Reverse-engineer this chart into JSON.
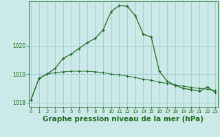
{
  "title": "Graphe pression niveau de la mer (hPa)",
  "background_color": "#cce9e9",
  "grid_color": "#99cccc",
  "line_color": "#1a6b1a",
  "x_labels": [
    "0",
    "1",
    "2",
    "3",
    "4",
    "5",
    "6",
    "7",
    "8",
    "9",
    "10",
    "11",
    "12",
    "13",
    "14",
    "15",
    "16",
    "17",
    "18",
    "19",
    "20",
    "21",
    "22",
    "23"
  ],
  "x_values": [
    0,
    1,
    2,
    3,
    4,
    5,
    6,
    7,
    8,
    9,
    10,
    11,
    12,
    13,
    14,
    15,
    16,
    17,
    18,
    19,
    20,
    21,
    22,
    23
  ],
  "line1_y": [
    1018.1,
    1018.85,
    1019.0,
    1019.2,
    1019.55,
    1019.7,
    1019.9,
    1020.1,
    1020.25,
    1020.55,
    1021.2,
    1021.4,
    1021.38,
    1021.05,
    1020.4,
    1020.3,
    1019.1,
    1018.75,
    1018.6,
    1018.5,
    1018.45,
    1018.4,
    1018.55,
    1018.35
  ],
  "line2_y": [
    1018.1,
    1018.85,
    1019.0,
    1019.05,
    1019.08,
    1019.1,
    1019.1,
    1019.1,
    1019.08,
    1019.05,
    1019.0,
    1018.97,
    1018.93,
    1018.88,
    1018.82,
    1018.78,
    1018.72,
    1018.67,
    1018.62,
    1018.58,
    1018.53,
    1018.5,
    1018.47,
    1018.42
  ],
  "ylim_min": 1017.85,
  "ylim_max": 1021.55,
  "yticks": [
    1018,
    1019,
    1020
  ],
  "title_fontsize": 7.5,
  "tick_fontsize": 5.5
}
